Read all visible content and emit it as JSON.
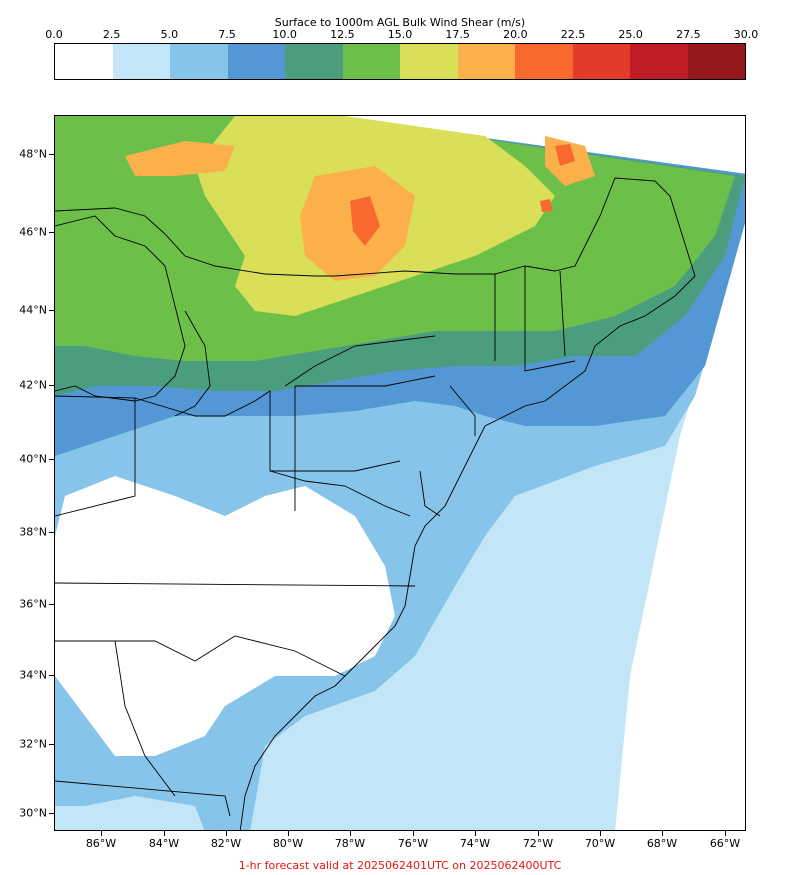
{
  "colorbar": {
    "title": "Surface to 1000m AGL Bulk Wind Shear (m/s)",
    "ticks": [
      "0.0",
      "2.5",
      "5.0",
      "7.5",
      "10.0",
      "12.5",
      "15.0",
      "17.5",
      "20.0",
      "22.5",
      "25.0",
      "27.5",
      "30.0"
    ],
    "colors": [
      "#ffffff",
      "#c2e6f8",
      "#86c4ea",
      "#5398d4",
      "#4a9e7e",
      "#6cc04a",
      "#d9df58",
      "#fbb04b",
      "#f7692c",
      "#e33a29",
      "#c01c26",
      "#95181c"
    ]
  },
  "map": {
    "lat_labels": [
      "48°N",
      "46°N",
      "44°N",
      "42°N",
      "40°N",
      "38°N",
      "36°N",
      "34°N",
      "32°N",
      "30°N"
    ],
    "lon_labels": [
      "86°W",
      "84°W",
      "82°W",
      "80°W",
      "78°W",
      "76°W",
      "74°W",
      "72°W",
      "70°W",
      "68°W",
      "66°W"
    ]
  },
  "footer": "1-hr forecast valid at 2025062401UTC on 2025062400UTC"
}
